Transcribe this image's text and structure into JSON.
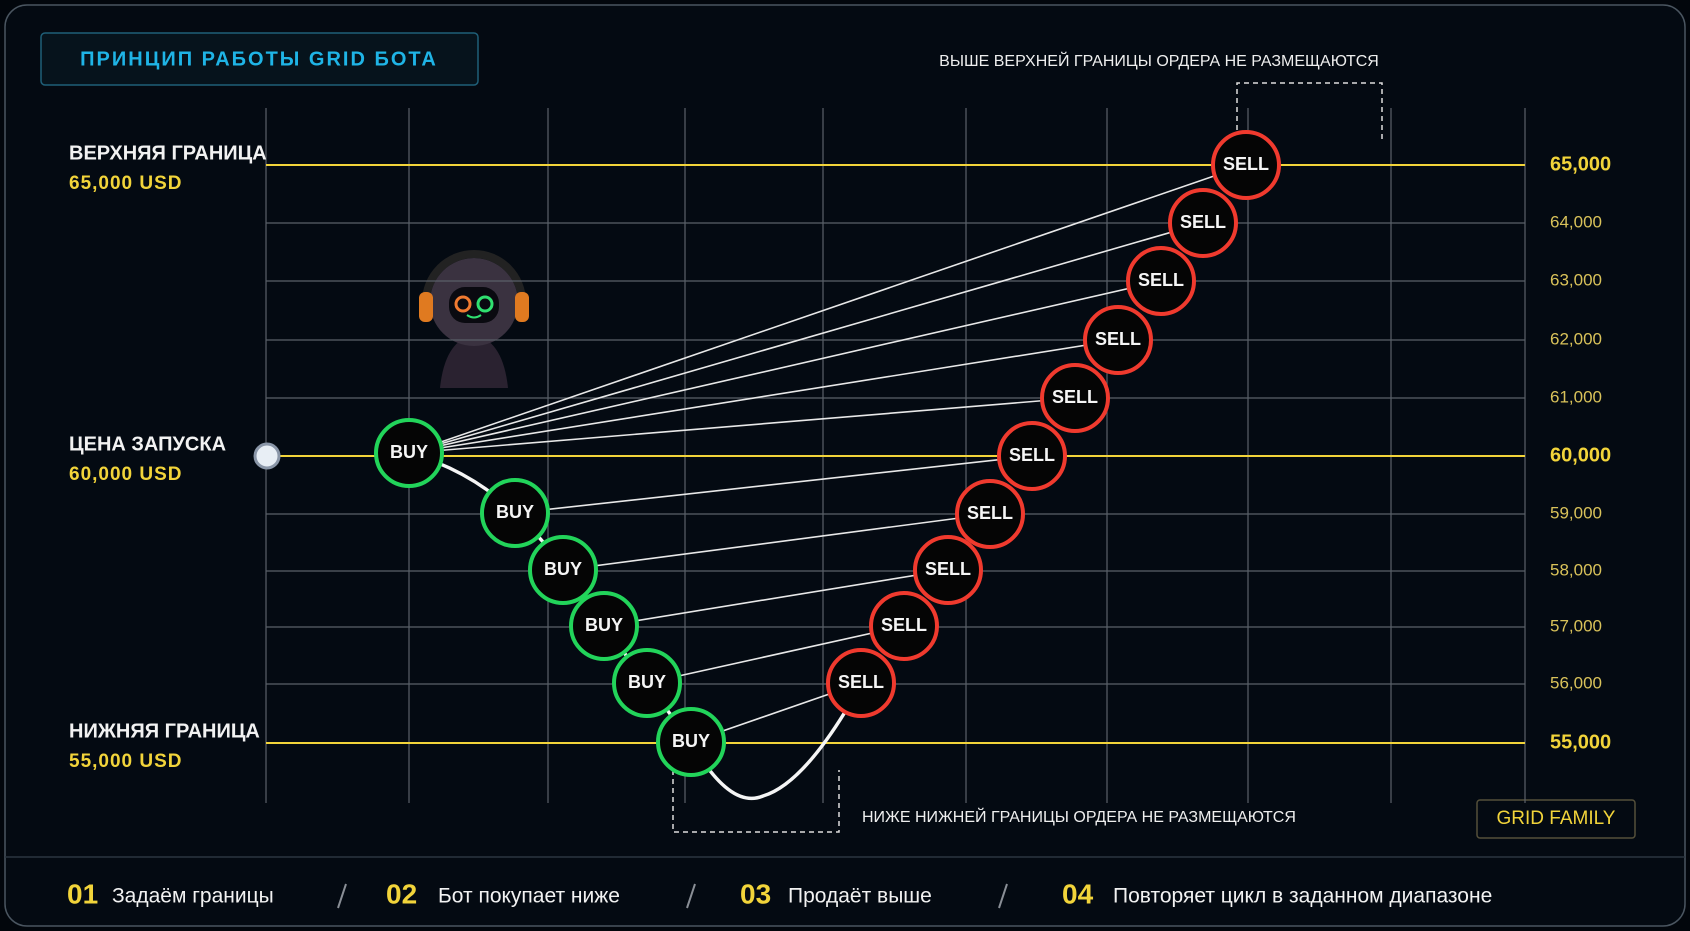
{
  "title": "ПРИНЦИП РАБОТЫ GRID БОТА",
  "levels": [
    {
      "name": "ВЕРХНЯЯ ГРАНИЦА",
      "price": "65,000 USD"
    },
    {
      "name": "ЦЕНА ЗАПУСКА",
      "price": "60,000 USD"
    },
    {
      "name": "НИЖНЯЯ ГРАНИЦА",
      "price": "55,000 USD"
    }
  ],
  "axis_labels": [
    "65,000",
    "64,000",
    "63,000",
    "62,000",
    "61,000",
    "60,000",
    "59,000",
    "58,000",
    "57,000",
    "56,000",
    "55,000"
  ],
  "buy_orders": [
    "BUY",
    "BUY",
    "BUY",
    "BUY",
    "BUY",
    "BUY"
  ],
  "sell_orders": [
    "SELL",
    "SELL",
    "SELL",
    "SELL",
    "SELL",
    "SELL",
    "SELL",
    "SELL",
    "SELL",
    "SELL"
  ],
  "notes": {
    "above": "ВЫШЕ ВЕРХНЕЙ ГРАНИЦЫ ОРДЕРА НЕ РАЗМЕЩАЮТСЯ",
    "below": "НИЖЕ НИЖНЕЙ ГРАНИЦЫ ОРДЕРА НЕ РАЗМЕЩАЮТСЯ"
  },
  "brand": "GRID FAMILY",
  "steps": [
    {
      "number": "01",
      "text": "Задаём границы"
    },
    {
      "number": "02",
      "text": "Бот покупает ниже"
    },
    {
      "number": "03",
      "text": "Продаёт выше"
    },
    {
      "number": "04",
      "text": "Повторяет цикл в заданном диапазоне"
    }
  ]
}
